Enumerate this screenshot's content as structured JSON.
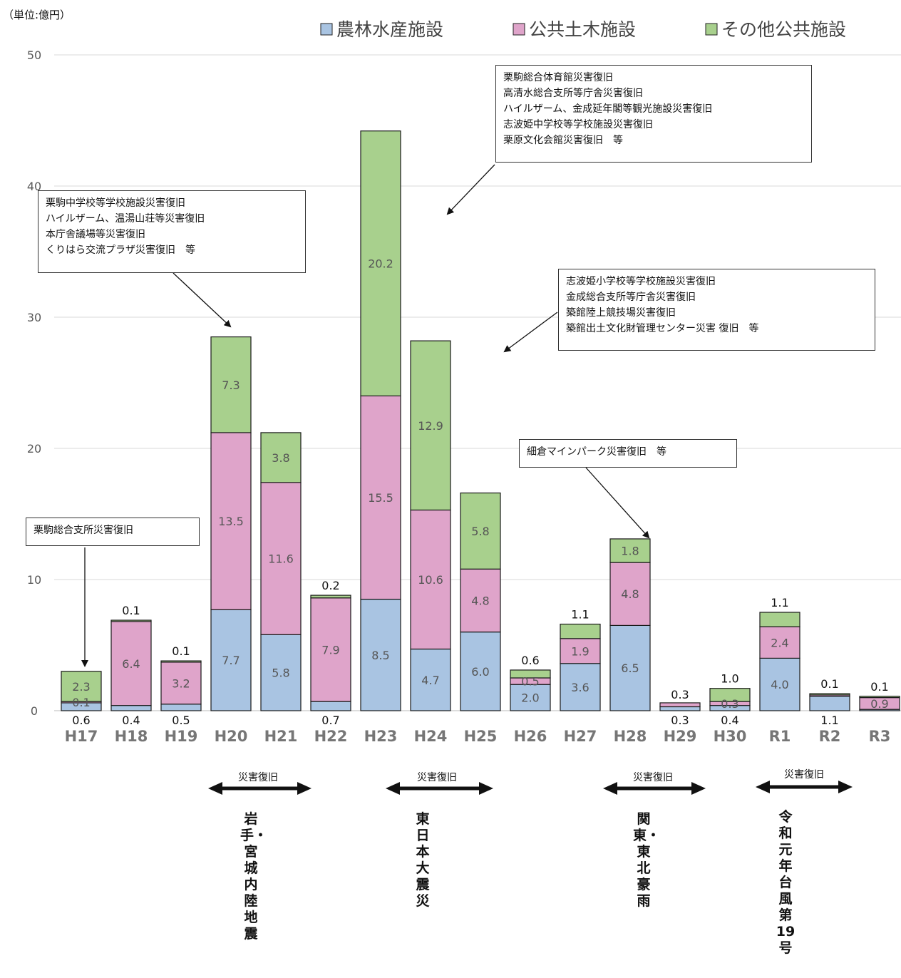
{
  "unit_label": "（単位:億円）",
  "legend": [
    {
      "name": "農林水産施設",
      "color": "#a9c4e2"
    },
    {
      "name": "公共土木施設",
      "color": "#dfa4ca"
    },
    {
      "name": "その他公共施設",
      "color": "#a8d08d"
    }
  ],
  "chart_data": {
    "type": "bar",
    "stacked": true,
    "categories": [
      "H17",
      "H18",
      "H19",
      "H20",
      "H21",
      "H22",
      "H23",
      "H24",
      "H25",
      "H26",
      "H27",
      "H28",
      "H29",
      "H30",
      "R1",
      "R2",
      "R3"
    ],
    "series": [
      {
        "name": "農林水産施設",
        "values": [
          0.6,
          0.4,
          0.5,
          7.7,
          5.8,
          0.7,
          8.5,
          4.7,
          6.0,
          2.0,
          3.6,
          6.5,
          0.3,
          0.4,
          4.0,
          1.1,
          0.1
        ]
      },
      {
        "name": "公共土木施設",
        "values": [
          0.1,
          6.4,
          3.2,
          13.5,
          11.6,
          7.9,
          15.5,
          10.6,
          4.8,
          0.5,
          1.9,
          4.8,
          0.3,
          0.3,
          2.4,
          0.1,
          0.9
        ]
      },
      {
        "name": "その他公共施設",
        "values": [
          2.3,
          0.1,
          0.1,
          7.3,
          3.8,
          0.2,
          20.2,
          12.9,
          5.8,
          0.6,
          1.1,
          1.8,
          0.0,
          1.0,
          1.1,
          0.1,
          0.1
        ]
      }
    ],
    "value_labels": [
      [
        "0.6",
        "0.4",
        "0.5",
        "7.7",
        "5.8",
        "0.7",
        "8.5",
        "4.7",
        "6.0",
        "2.0",
        "3.6",
        "6.5",
        "0.3",
        "0.4",
        "4.0",
        "1.1",
        ""
      ],
      [
        "0.1",
        "6.4",
        "3.2",
        "13.5",
        "11.6",
        "7.9",
        "15.5",
        "10.6",
        "4.8",
        "0.5",
        "1.9",
        "4.8",
        "0.3",
        "0.3",
        "2.4",
        "",
        "0.9"
      ],
      [
        "2.3",
        "0.1",
        "0.1",
        "7.3",
        "3.8",
        "0.2",
        "20.2",
        "12.9",
        "5.8",
        "0.6",
        "1.1",
        "1.8",
        "",
        "1.0",
        "1.1",
        "0.1",
        "0.1"
      ]
    ],
    "ylim": [
      0,
      50
    ],
    "yticks": [
      0,
      10,
      20,
      30,
      40,
      50
    ],
    "grid": true,
    "legend_position": "top-right"
  },
  "callouts": [
    {
      "lines": [
        "栗駒総合支所災害復旧"
      ]
    },
    {
      "lines": [
        "栗駒中学校等学校施設災害復旧",
        "ハイルザーム、温湯山荘等災害復旧",
        "本庁舎議場等災害復旧",
        "くりはら交流プラザ災害復旧　等"
      ]
    },
    {
      "lines": [
        "栗駒総合体育館災害復旧",
        "高清水総合支所等庁舎災害復旧",
        "ハイルザーム、金成延年閣等観光施設災害復旧",
        "志波姫中学校等学校施設災害復旧",
        "栗原文化会館災害復旧　等"
      ]
    },
    {
      "lines": [
        "志波姫小学校等学校施設災害復旧",
        "金成総合支所等庁舎災害復旧",
        "築館陸上競技場災害復旧",
        "築館出土文化財管理センター災害 復旧　等"
      ]
    },
    {
      "lines": [
        "細倉マインパーク災害復旧　等"
      ]
    }
  ],
  "recovery_label": "災害復旧",
  "events": [
    {
      "text": "岩手・宮城内陸地震"
    },
    {
      "text": "東日本大震災"
    },
    {
      "text": "関東・東北豪雨"
    },
    {
      "text": "令和元年台風第19号"
    }
  ]
}
